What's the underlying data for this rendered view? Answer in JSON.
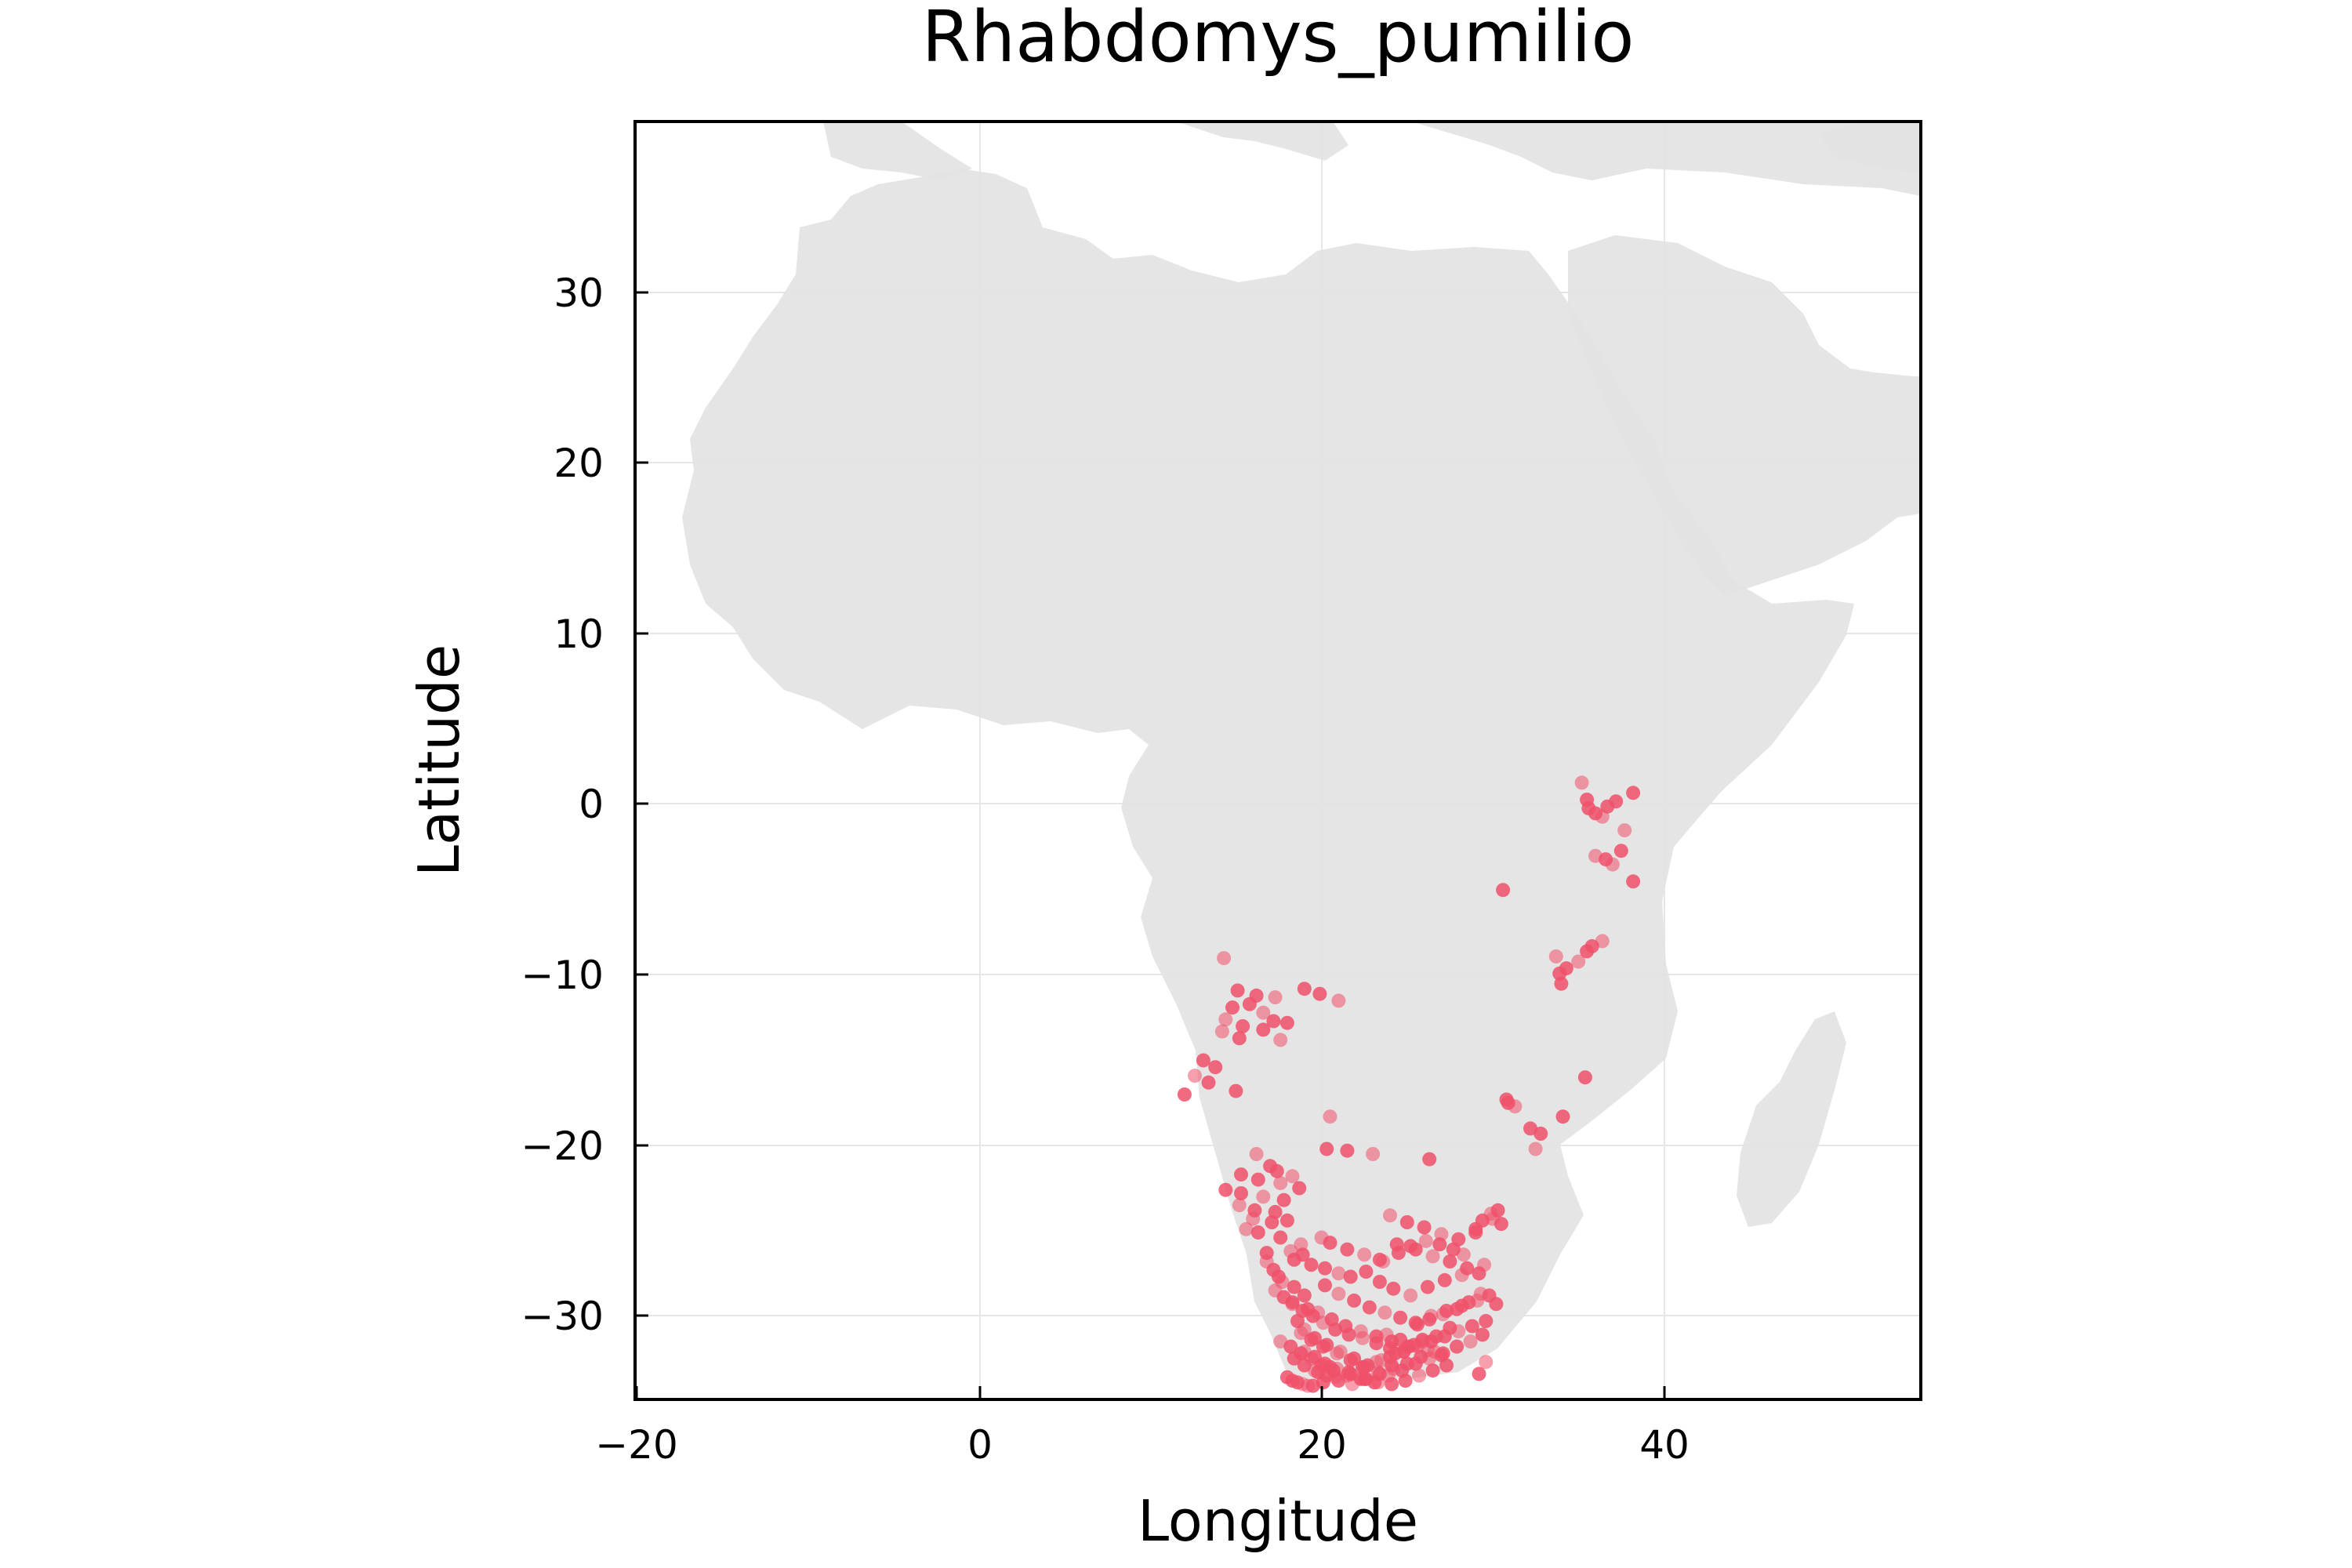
{
  "chart_data": {
    "type": "scatter",
    "title": "Rhabdomys_pumilio",
    "xlabel": "Longitude",
    "ylabel": "Latitude",
    "xlim": [
      -20,
      55
    ],
    "ylim": [
      -35,
      40
    ],
    "xticks": [
      -20,
      0,
      20,
      40
    ],
    "xtick_labels": [
      "−20",
      "0",
      "20",
      "40"
    ],
    "yticks": [
      -30,
      -20,
      -10,
      0,
      10,
      20,
      30
    ],
    "ytick_labels": [
      "−30",
      "−20",
      "−10",
      "0",
      "10",
      "20",
      "30"
    ],
    "grid": true,
    "legend": "none",
    "background_map": "Africa landmass in light gray",
    "colors": {
      "point": "#f0506a",
      "land": "#e3e3e3",
      "grid": "#e8e8e8",
      "frame": "#000000"
    },
    "series": [
      {
        "x": [
          35.2,
          35.5,
          36.0,
          36.4,
          36.7,
          37.2,
          37.7,
          38.2,
          35.6,
          36.0,
          36.6,
          37.5,
          37.0,
          38.2,
          30.6,
          36.4,
          35.8,
          35.5,
          35.0,
          34.3,
          34.0,
          33.7,
          33.9,
          35.4,
          14.3,
          15.1,
          16.2,
          17.3,
          19.0,
          19.9,
          21.0,
          14.8,
          15.8,
          16.6,
          17.2,
          18.0,
          14.4,
          15.4,
          16.6,
          17.6,
          13.1,
          13.8,
          12.6,
          13.4,
          12.0,
          14.2,
          15.2,
          15.0,
          16.2,
          17.0,
          17.4,
          18.3,
          15.3,
          16.3,
          17.6,
          14.4,
          15.3,
          16.6,
          17.8,
          18.7,
          15.2,
          16.1,
          17.3,
          16.0,
          17.1,
          18.0,
          15.6,
          16.3,
          17.6,
          18.8,
          16.8,
          18.4,
          20.5,
          20.3,
          21.5,
          23.0,
          26.3,
          30.8,
          31.3,
          32.2,
          32.8,
          32.5,
          34.1,
          30.9,
          16.8,
          17.2,
          17.5,
          18.2,
          18.9,
          19.4,
          17.7,
          18.4,
          19.0,
          17.3,
          18.3,
          19.2,
          20.0,
          20.5,
          21.5,
          22.5,
          23.4,
          20.2,
          21.0,
          21.7,
          22.6,
          23.6,
          24.5,
          25.2,
          26.1,
          26.9,
          27.7,
          28.3,
          29.0,
          29.4,
          29.9,
          30.3,
          30.5,
          24.0,
          25.0,
          26.0,
          27.0,
          28.0,
          29.0,
          30.0,
          24.4,
          25.5,
          26.5,
          27.5,
          28.5,
          29.5,
          23.4,
          24.2,
          25.2,
          26.2,
          27.2,
          28.2,
          29.2,
          20.2,
          21.0,
          21.9,
          22.8,
          23.7,
          24.6,
          25.5,
          26.4,
          27.3,
          28.2,
          29.1,
          29.8,
          30.2,
          19.8,
          20.6,
          21.4,
          22.3,
          23.2,
          24.1,
          25.0,
          25.9,
          18.6,
          19.0,
          19.6,
          20.3,
          21.1,
          21.9,
          22.7,
          23.5,
          24.3,
          25.1,
          25.9,
          26.7,
          27.5,
          18.8,
          19.4,
          20.1,
          20.9,
          21.7,
          22.5,
          23.3,
          24.1,
          17.8,
          18.3,
          18.9,
          19.5,
          20.1,
          20.8,
          21.6,
          22.4,
          23.2,
          24.0,
          24.8,
          25.6,
          26.3,
          27.1,
          27.9,
          28.6,
          29.3,
          18.4,
          19.0,
          19.6,
          20.3,
          21.0,
          21.8,
          22.6,
          23.4,
          24.2,
          25.0,
          25.8,
          26.6,
          18.0,
          18.6,
          19.2,
          19.8,
          20.5,
          17.6,
          18.2,
          18.8,
          19.4,
          20.0,
          20.7,
          21.5,
          22.3,
          23.1,
          23.9,
          24.7,
          25.5,
          26.3,
          27.1,
          27.9,
          28.7,
          29.4,
          18.3,
          18.9,
          19.5,
          20.1,
          20.8,
          21.6,
          22.4,
          23.2,
          24.0,
          24.8,
          25.6,
          26.4,
          27.2,
          28.0,
          28.8,
          29.6,
          19.0,
          19.6,
          20.2,
          20.9,
          21.7,
          22.5,
          23.3,
          24.1,
          24.9,
          25.7,
          26.5,
          27.3,
          23.8,
          24.6,
          25.4,
          26.2,
          27.0,
          29.2,
          29.6
        ],
        "y": [
          1.2,
          0.2,
          -0.6,
          -0.8,
          -0.2,
          0.1,
          -1.6,
          0.6,
          -0.3,
          -3.1,
          -3.3,
          -2.8,
          -3.6,
          -4.6,
          -5.1,
          -8.1,
          -8.4,
          -8.7,
          -9.3,
          -9.7,
          -10.6,
          -9.0,
          -10.0,
          -16.1,
          -9.1,
          -11.0,
          -11.3,
          -11.4,
          -10.9,
          -11.2,
          -11.6,
          -12.0,
          -11.8,
          -12.3,
          -12.8,
          -12.9,
          -12.7,
          -13.1,
          -13.3,
          -13.9,
          -15.1,
          -15.5,
          -16.0,
          -16.4,
          -17.1,
          -13.4,
          -13.8,
          -16.9,
          -20.6,
          -21.3,
          -21.6,
          -21.9,
          -21.8,
          -22.1,
          -22.3,
          -22.7,
          -22.9,
          -23.1,
          -23.3,
          -22.6,
          -23.6,
          -23.9,
          -24.0,
          -24.4,
          -24.6,
          -24.5,
          -25.0,
          -25.2,
          -25.5,
          -25.9,
          -26.4,
          -26.8,
          -18.4,
          -20.3,
          -20.4,
          -20.6,
          -20.9,
          -17.4,
          -17.8,
          -19.1,
          -19.4,
          -20.3,
          -18.4,
          -17.6,
          -26.9,
          -27.4,
          -27.8,
          -26.3,
          -26.5,
          -27.1,
          -28.1,
          -28.4,
          -28.9,
          -28.6,
          -29.3,
          -29.7,
          -25.5,
          -25.8,
          -26.2,
          -26.5,
          -26.8,
          -27.3,
          -27.6,
          -27.8,
          -27.5,
          -26.9,
          -26.4,
          -26.0,
          -25.7,
          -25.9,
          -26.2,
          -26.5,
          -25.2,
          -24.5,
          -24.1,
          -23.9,
          -24.7,
          -24.2,
          -24.6,
          -24.9,
          -25.3,
          -25.6,
          -25.0,
          -24.4,
          -25.9,
          -26.2,
          -26.6,
          -26.9,
          -27.3,
          -27.1,
          -28.1,
          -28.5,
          -28.9,
          -28.4,
          -28.0,
          -27.7,
          -27.6,
          -28.3,
          -28.8,
          -29.2,
          -29.6,
          -29.9,
          -30.2,
          -30.5,
          -30.1,
          -29.8,
          -29.5,
          -29.2,
          -28.9,
          -29.4,
          -29.9,
          -30.3,
          -30.7,
          -31.0,
          -31.3,
          -31.6,
          -31.9,
          -31.5,
          -30.4,
          -30.9,
          -31.4,
          -31.8,
          -32.2,
          -32.6,
          -33.0,
          -32.7,
          -32.3,
          -31.9,
          -31.6,
          -31.3,
          -30.8,
          -31.1,
          -31.5,
          -31.9,
          -32.3,
          -32.7,
          -33.1,
          -33.4,
          -33.0,
          -29.0,
          -29.4,
          -29.8,
          -30.1,
          -30.5,
          -30.9,
          -31.2,
          -31.4,
          -31.7,
          -32.0,
          -32.2,
          -30.6,
          -30.3,
          -30.0,
          -29.7,
          -29.3,
          -28.8,
          -32.6,
          -33.0,
          -33.3,
          -33.6,
          -33.9,
          -34.1,
          -33.8,
          -33.5,
          -33.2,
          -32.9,
          -32.5,
          -32.2,
          -33.7,
          -34.0,
          -34.2,
          -33.4,
          -33.1,
          -31.6,
          -31.9,
          -32.3,
          -32.6,
          -33.0,
          -33.3,
          -33.6,
          -33.8,
          -34.0,
          -33.6,
          -33.3,
          -32.9,
          -32.6,
          -32.3,
          -31.9,
          -31.6,
          -31.2,
          -33.9,
          -34.1,
          -34.2,
          -34.0,
          -33.7,
          -33.4,
          -33.1,
          -32.8,
          -32.5,
          -32.2,
          -31.9,
          -31.6,
          -31.3,
          -31.0,
          -30.7,
          -30.4,
          -32.2,
          -32.5,
          -32.9,
          -33.2,
          -33.5,
          -33.8,
          -34.0,
          -34.1,
          -33.9,
          -33.6,
          -33.3,
          -33.0,
          -31.2,
          -31.5,
          -31.8,
          -32.1,
          -32.4,
          -33.5,
          -32.8
        ]
      }
    ]
  }
}
